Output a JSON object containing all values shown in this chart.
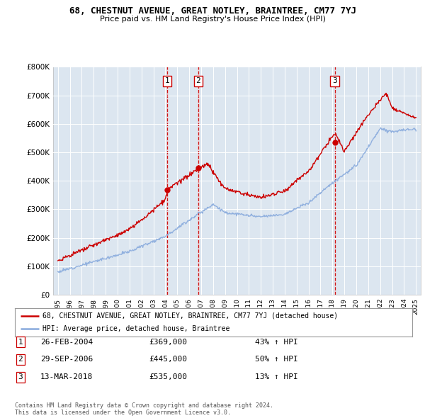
{
  "title": "68, CHESTNUT AVENUE, GREAT NOTLEY, BRAINTREE, CM77 7YJ",
  "subtitle": "Price paid vs. HM Land Registry's House Price Index (HPI)",
  "background_color": "#ffffff",
  "plot_bg_color": "#dce6f0",
  "grid_color": "#ffffff",
  "sale_color": "#cc0000",
  "hpi_color": "#88aadd",
  "ylim": [
    0,
    800000
  ],
  "yticks": [
    0,
    100000,
    200000,
    300000,
    400000,
    500000,
    600000,
    700000,
    800000
  ],
  "ytick_labels": [
    "£0",
    "£100K",
    "£200K",
    "£300K",
    "£400K",
    "£500K",
    "£600K",
    "£700K",
    "£800K"
  ],
  "sale_dates": [
    2004.15,
    2006.75,
    2018.19
  ],
  "sale_prices": [
    369000,
    445000,
    535000
  ],
  "sale_labels": [
    "1",
    "2",
    "3"
  ],
  "vline_color": "#cc0000",
  "vline_highlight_colors": [
    "#e8d0d8",
    "#e8d0d8",
    "#e8d0d8"
  ],
  "transactions": [
    {
      "label": "1",
      "date": "26-FEB-2004",
      "price": "£369,000",
      "pct": "43% ↑ HPI"
    },
    {
      "label": "2",
      "date": "29-SEP-2006",
      "price": "£445,000",
      "pct": "50% ↑ HPI"
    },
    {
      "label": "3",
      "date": "13-MAR-2018",
      "price": "£535,000",
      "pct": "13% ↑ HPI"
    }
  ],
  "footer1": "Contains HM Land Registry data © Crown copyright and database right 2024.",
  "footer2": "This data is licensed under the Open Government Licence v3.0.",
  "legend_sale": "68, CHESTNUT AVENUE, GREAT NOTLEY, BRAINTREE, CM77 7YJ (detached house)",
  "legend_hpi": "HPI: Average price, detached house, Braintree"
}
